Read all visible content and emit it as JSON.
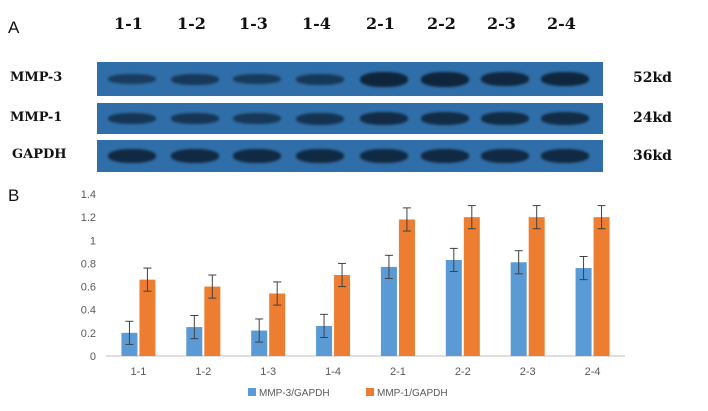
{
  "panels": {
    "a": "A",
    "b": "B"
  },
  "blot": {
    "lanes": [
      "1-1",
      "1-2",
      "1-3",
      "1-4",
      "2-1",
      "2-2",
      "2-3",
      "2-4"
    ],
    "rows": [
      {
        "label": "MMP-3",
        "size": "52kd",
        "intensity": [
          0.45,
          0.55,
          0.5,
          0.55,
          0.95,
          0.95,
          0.9,
          0.92
        ]
      },
      {
        "label": "MMP-1",
        "size": "24kd",
        "intensity": [
          0.6,
          0.6,
          0.55,
          0.65,
          0.8,
          0.8,
          0.8,
          0.8
        ]
      },
      {
        "label": "GAPDH",
        "size": "36kd",
        "intensity": [
          0.85,
          0.85,
          0.85,
          0.85,
          0.85,
          0.85,
          0.85,
          0.85
        ]
      }
    ],
    "colors": {
      "membrane": "#2f6ea8",
      "band": "#0d1f33"
    }
  },
  "chart_data": {
    "type": "bar",
    "categories": [
      "1-1",
      "1-2",
      "1-3",
      "1-4",
      "2-1",
      "2-2",
      "2-3",
      "2-4"
    ],
    "series": [
      {
        "name": "MMP-3/GAPDH",
        "color": "#5b9bd5",
        "values": [
          0.2,
          0.25,
          0.22,
          0.26,
          0.77,
          0.83,
          0.81,
          0.76
        ],
        "errors": [
          0.1,
          0.1,
          0.1,
          0.1,
          0.1,
          0.1,
          0.1,
          0.1
        ]
      },
      {
        "name": "MMP-1/GAPDH",
        "color": "#ed7d31",
        "values": [
          0.66,
          0.6,
          0.54,
          0.7,
          1.18,
          1.2,
          1.2,
          1.2
        ],
        "errors": [
          0.1,
          0.1,
          0.1,
          0.1,
          0.1,
          0.1,
          0.1,
          0.1
        ]
      }
    ],
    "ylim": [
      0,
      1.4
    ],
    "yticks": [
      "0",
      "0.2",
      "0.4",
      "0.6",
      "0.8",
      "1",
      "1.2",
      "1.4"
    ],
    "grid": false,
    "legend": "bottom"
  }
}
